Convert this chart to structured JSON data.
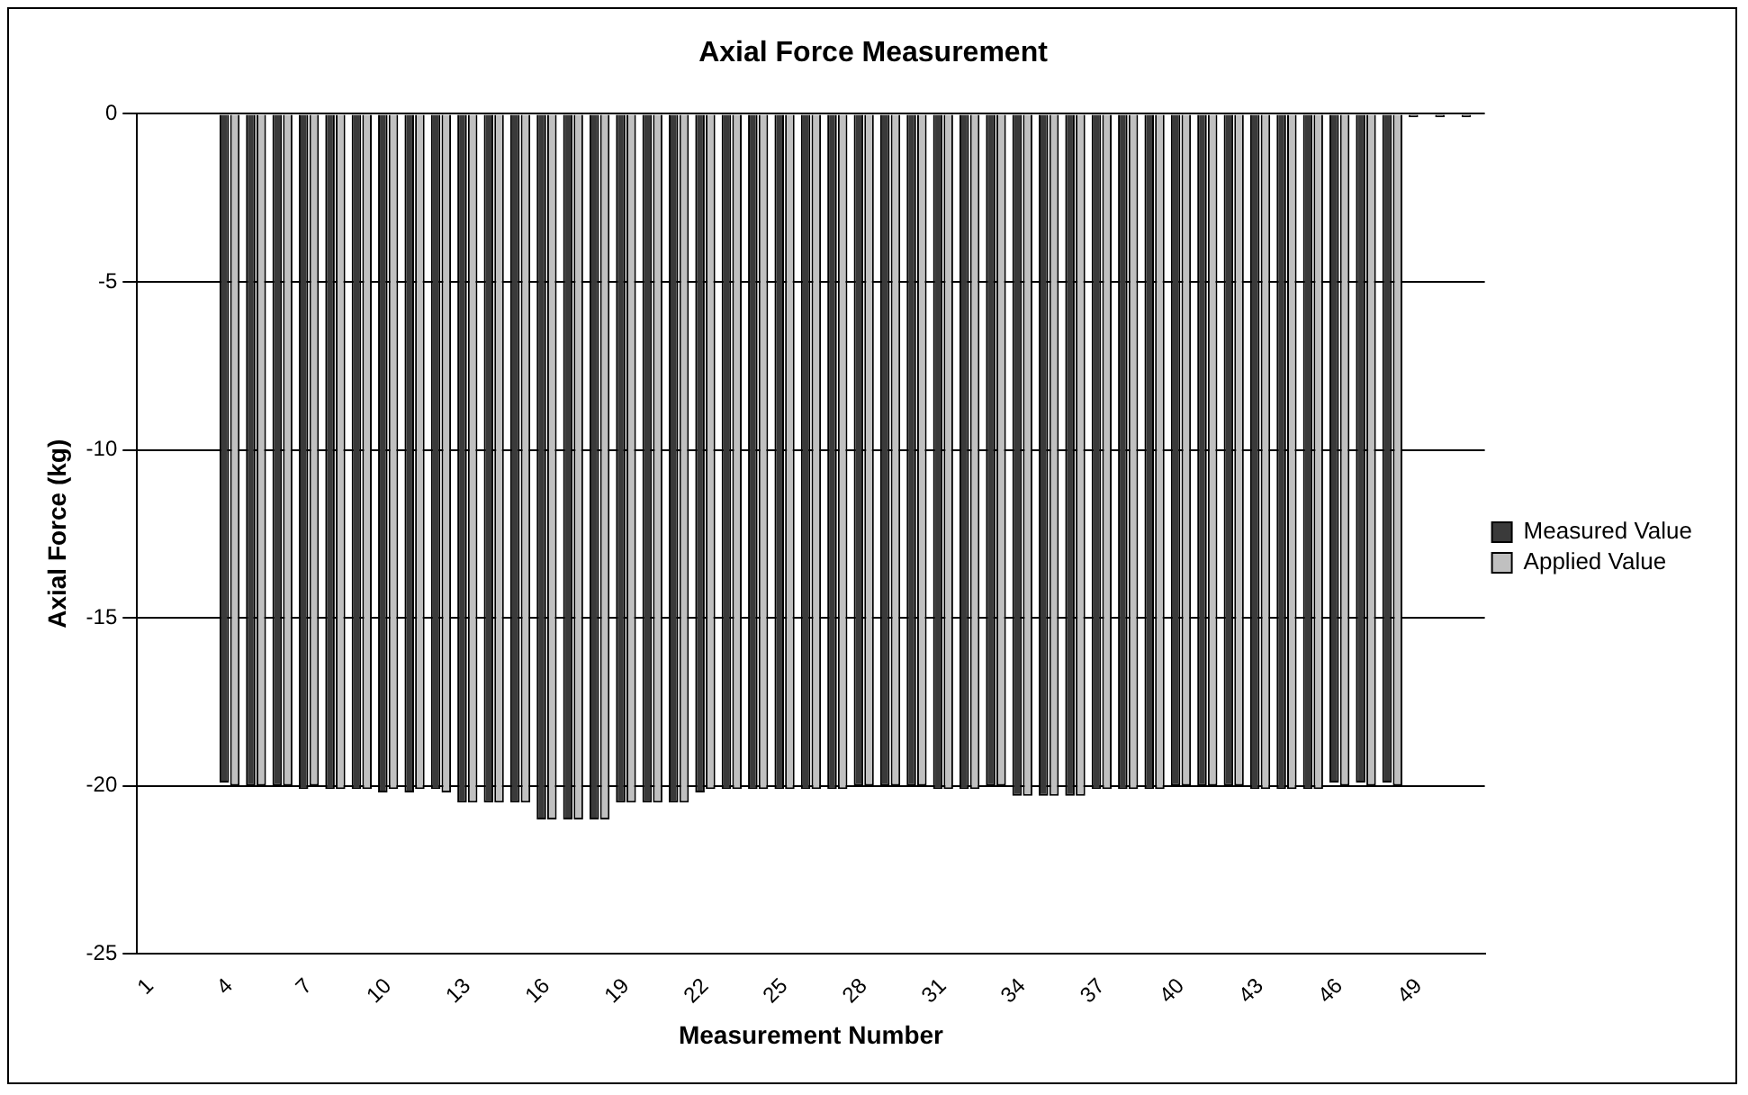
{
  "chart_data": {
    "type": "bar",
    "title": "Axial Force Measurement",
    "xlabel": "Measurement Number",
    "ylabel": "Axial Force (kg)",
    "categories": [
      "1",
      null,
      null,
      "4",
      null,
      null,
      "7",
      null,
      null,
      "10",
      null,
      null,
      "13",
      null,
      null,
      "16",
      null,
      null,
      "19",
      null,
      null,
      "22",
      null,
      null,
      "25",
      null,
      null,
      "28",
      null,
      null,
      "31",
      null,
      null,
      "34",
      null,
      null,
      "37",
      null,
      null,
      "40",
      null,
      null,
      "43",
      null,
      null,
      "46",
      null,
      null,
      "49",
      null,
      null
    ],
    "series": [
      {
        "name": "Measured Value",
        "color": "#3a3a3a",
        "values": [
          null,
          null,
          null,
          -19.9,
          -20,
          -20,
          -20.1,
          -20.1,
          -20.1,
          -20.2,
          -20.2,
          -20.1,
          -20.5,
          -20.5,
          -20.5,
          -21,
          -21,
          -21,
          -20.5,
          -20.5,
          -20.5,
          -20.2,
          -20.1,
          -20.1,
          -20.1,
          -20.1,
          -20.1,
          -20,
          -20,
          -20,
          -20.1,
          -20.1,
          -20,
          -20.3,
          -20.3,
          -20.3,
          -20.1,
          -20.1,
          -20.1,
          -20,
          -20,
          -20,
          -20.1,
          -20.1,
          -20.1,
          -19.9,
          -19.9,
          -19.9,
          -0.1,
          -0.1,
          -0.1
        ]
      },
      {
        "name": "Applied Value",
        "color": "#c0c0c0",
        "values": [
          null,
          null,
          null,
          -20,
          -20,
          -20,
          -20,
          -20.1,
          -20.1,
          -20.1,
          -20.1,
          -20.2,
          -20.5,
          -20.5,
          -20.5,
          -21,
          -21,
          -21,
          -20.5,
          -20.5,
          -20.5,
          -20.1,
          -20.1,
          -20.1,
          -20.1,
          -20.1,
          -20.1,
          -20,
          -20,
          -20,
          -20.1,
          -20.1,
          -20,
          -20.3,
          -20.3,
          -20.3,
          -20.1,
          -20.1,
          -20.1,
          -20,
          -20,
          -20,
          -20.1,
          -20.1,
          -20.1,
          -20,
          -20,
          -20,
          null,
          null,
          null
        ]
      }
    ],
    "ylim": [
      -25,
      0
    ],
    "yticks": [
      -25,
      -20,
      -15,
      -10,
      -5,
      0
    ],
    "grid": "y",
    "legend": "right"
  }
}
